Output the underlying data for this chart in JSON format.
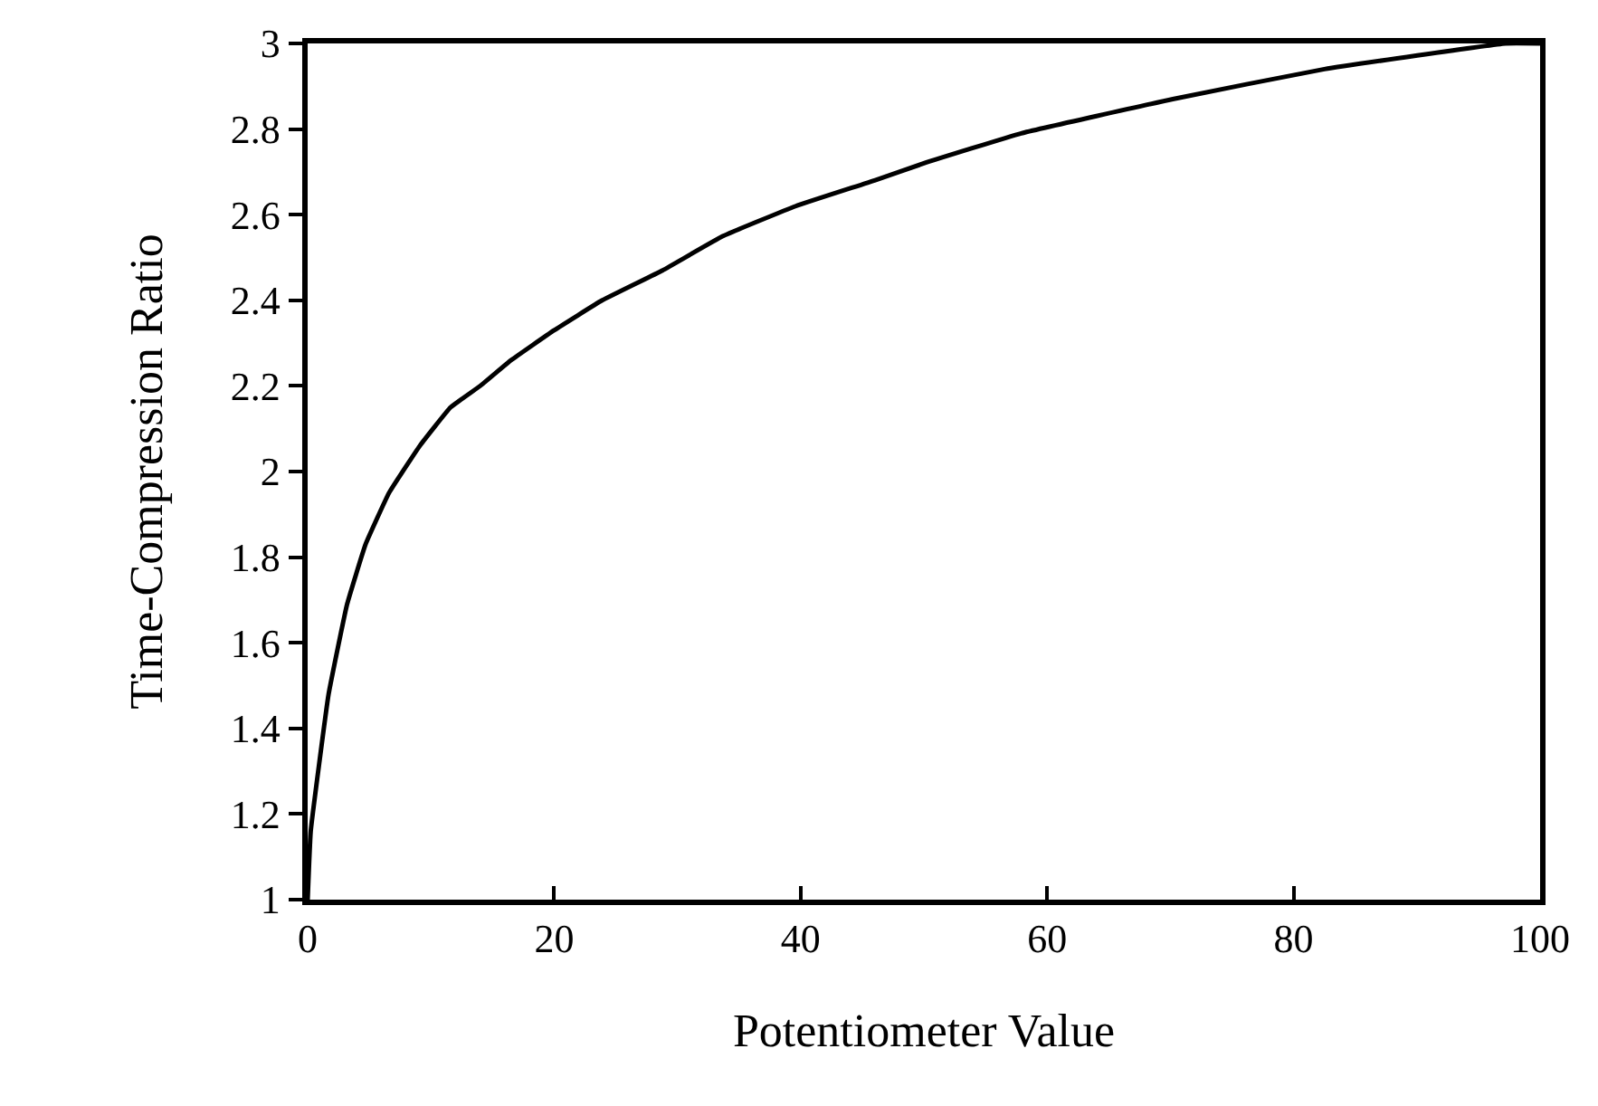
{
  "chart_data": {
    "type": "line",
    "xlabel": "Potentiometer Value",
    "ylabel": "Time-Compression Ratio",
    "x": [
      0,
      0.25,
      1.7,
      3.2,
      4.7,
      6.6,
      9.1,
      11.6,
      14,
      16.5,
      20,
      23.9,
      28.8,
      33.7,
      39.6,
      46,
      50,
      57.9,
      70.2,
      82.5,
      97.2,
      100
    ],
    "series": [
      {
        "color": "#000000",
        "values": [
          1,
          1.16,
          1.48,
          1.69,
          1.83,
          1.95,
          2.06,
          2.15,
          2.2,
          2.26,
          2.33,
          2.4,
          2.47,
          2.55,
          2.62,
          2.68,
          2.72,
          2.79,
          2.87,
          2.94,
          3.0,
          3.0
        ]
      }
    ],
    "xlim": [
      0,
      100
    ],
    "xticks": [
      0,
      20,
      40,
      60,
      80,
      100
    ],
    "ylim": [
      1,
      3
    ],
    "yticks": [
      1,
      1.2,
      1.4,
      1.6,
      1.8,
      2,
      2.2,
      2.4,
      2.6,
      2.8,
      3
    ],
    "marker": "none",
    "line_style": "solid"
  }
}
